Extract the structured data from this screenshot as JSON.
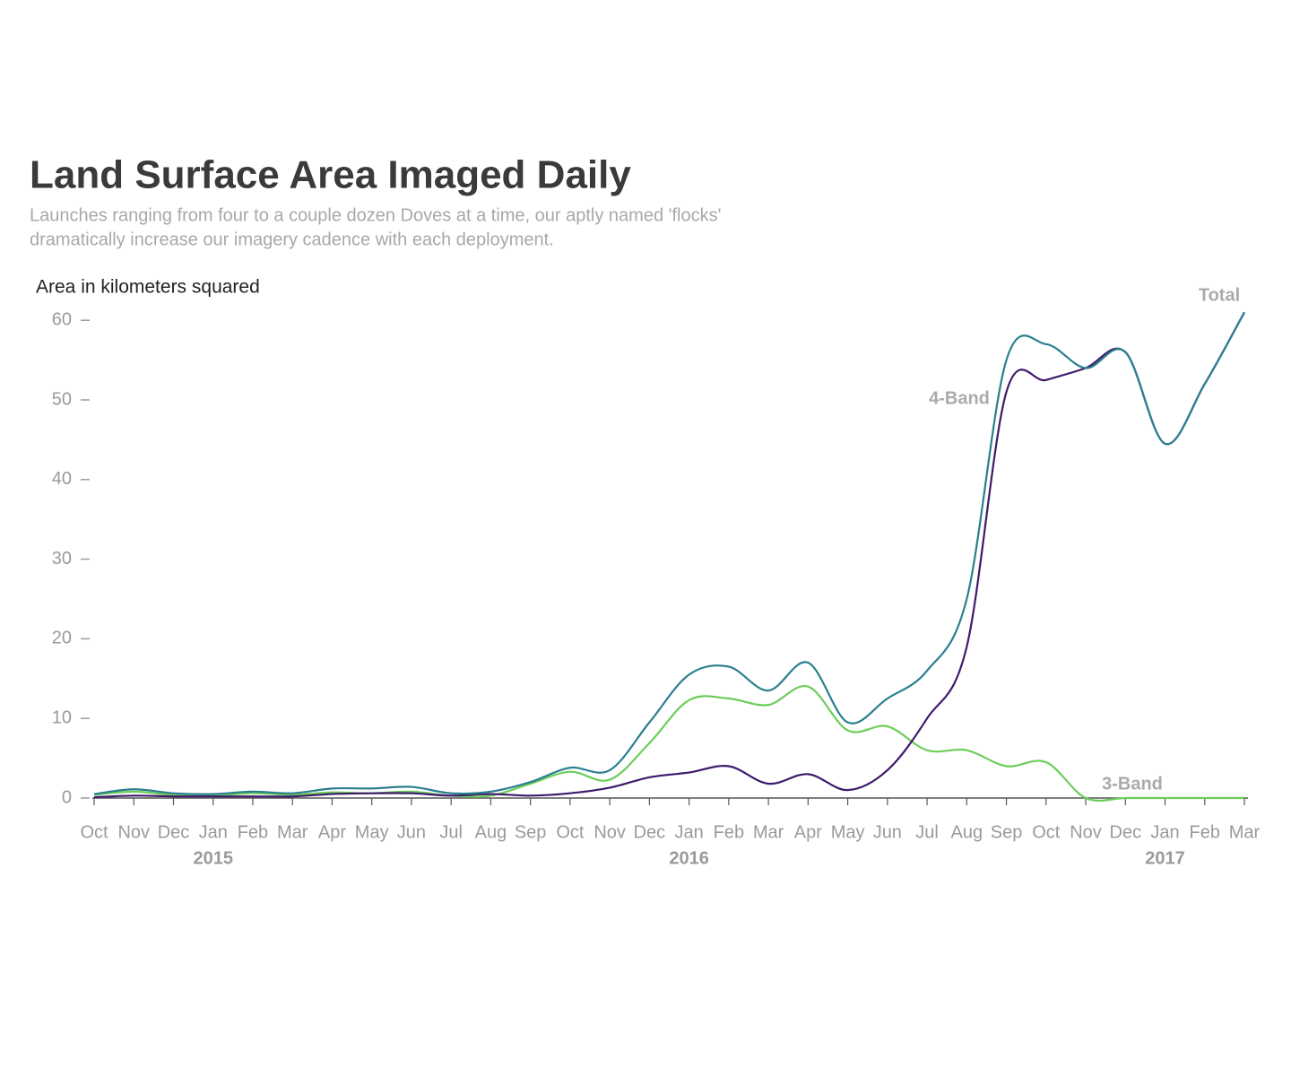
{
  "chart_data": {
    "type": "line",
    "title": "Land Surface Area Imaged Daily",
    "subtitle": [
      "Launches ranging from four to a couple dozen Doves at a time, our aptly named 'flocks'",
      "dramatically increase our imagery cadence with each deployment."
    ],
    "y_label": "Area in kilometers squared",
    "x": [
      "2014-10",
      "2014-11",
      "2014-12",
      "2015-01",
      "2015-02",
      "2015-03",
      "2015-04",
      "2015-05",
      "2015-06",
      "2015-07",
      "2015-08",
      "2015-09",
      "2015-10",
      "2015-11",
      "2015-12",
      "2016-01",
      "2016-02",
      "2016-03",
      "2016-04",
      "2016-05",
      "2016-06",
      "2016-07",
      "2016-08",
      "2016-09",
      "2016-10",
      "2016-11",
      "2016-12",
      "2017-01",
      "2017-02",
      "2017-03"
    ],
    "series": [
      {
        "name": "Total",
        "color": "#2a7f8e",
        "values": [
          0.5,
          1.1,
          0.6,
          0.5,
          0.8,
          0.6,
          1.2,
          1.2,
          1.4,
          0.6,
          0.8,
          2.0,
          3.8,
          3.5,
          9.5,
          15.5,
          16.5,
          13.5,
          17.0,
          9.5,
          12.5,
          16.0,
          25.0,
          55.0,
          57.0,
          54.0,
          56.0,
          44.5,
          52.0,
          61.0
        ]
      },
      {
        "name": "4-Band",
        "color": "#3f1a6b",
        "values": [
          0.1,
          0.3,
          0.2,
          0.2,
          0.2,
          0.2,
          0.5,
          0.6,
          0.6,
          0.3,
          0.5,
          0.3,
          0.6,
          1.3,
          2.6,
          3.2,
          4.0,
          1.8,
          3.0,
          1.0,
          3.5,
          10.0,
          19.0,
          51.0,
          52.5,
          54.0,
          56.0,
          44.5,
          52.0,
          61.0
        ]
      },
      {
        "name": "3-Band",
        "color": "#6ccd5a",
        "values": [
          0.4,
          0.8,
          0.4,
          0.3,
          0.6,
          0.4,
          0.7,
          0.6,
          0.8,
          0.3,
          0.3,
          1.8,
          3.3,
          2.3,
          6.9,
          12.3,
          12.5,
          11.7,
          14.0,
          8.5,
          9.0,
          6.0,
          6.0,
          4.0,
          4.5,
          0,
          0,
          0,
          0,
          0
        ]
      }
    ],
    "ylim": [
      0,
      62
    ],
    "yticks": [
      0,
      10,
      20,
      30,
      40,
      50,
      60
    ],
    "xticks": [
      {
        "value": "2014-10",
        "label": "Oct"
      },
      {
        "value": "2014-11",
        "label": "Nov"
      },
      {
        "value": "2014-12",
        "label": "Dec"
      },
      {
        "value": "2015-01",
        "label": "Jan"
      },
      {
        "value": "2015-02",
        "label": "Feb"
      },
      {
        "value": "2015-03",
        "label": "Mar"
      },
      {
        "value": "2015-04",
        "label": "Apr"
      },
      {
        "value": "2015-05",
        "label": "May"
      },
      {
        "value": "2015-06",
        "label": "Jun"
      },
      {
        "value": "2015-07",
        "label": "Jul"
      },
      {
        "value": "2015-08",
        "label": "Aug"
      },
      {
        "value": "2015-09",
        "label": "Sep"
      },
      {
        "value": "2015-10",
        "label": "Oct"
      },
      {
        "value": "2015-11",
        "label": "Nov"
      },
      {
        "value": "2015-12",
        "label": "Dec"
      },
      {
        "value": "2016-01",
        "label": "Jan"
      },
      {
        "value": "2016-02",
        "label": "Feb"
      },
      {
        "value": "2016-03",
        "label": "Mar"
      },
      {
        "value": "2016-04",
        "label": "Apr"
      },
      {
        "value": "2016-05",
        "label": "May"
      },
      {
        "value": "2016-06",
        "label": "Jun"
      },
      {
        "value": "2016-07",
        "label": "Jul"
      },
      {
        "value": "2016-08",
        "label": "Aug"
      },
      {
        "value": "2016-09",
        "label": "Sep"
      },
      {
        "value": "2016-10",
        "label": "Oct"
      },
      {
        "value": "2016-11",
        "label": "Nov"
      },
      {
        "value": "2016-12",
        "label": "Dec"
      },
      {
        "value": "2017-01",
        "label": "Jan"
      },
      {
        "value": "2017-02",
        "label": "Feb"
      },
      {
        "value": "2017-03",
        "label": "Mar"
      }
    ],
    "year_labels": [
      {
        "value": "2015-01",
        "label": "2015"
      },
      {
        "value": "2016-01",
        "label": "2016"
      },
      {
        "value": "2017-01",
        "label": "2017"
      }
    ],
    "grid": false
  }
}
